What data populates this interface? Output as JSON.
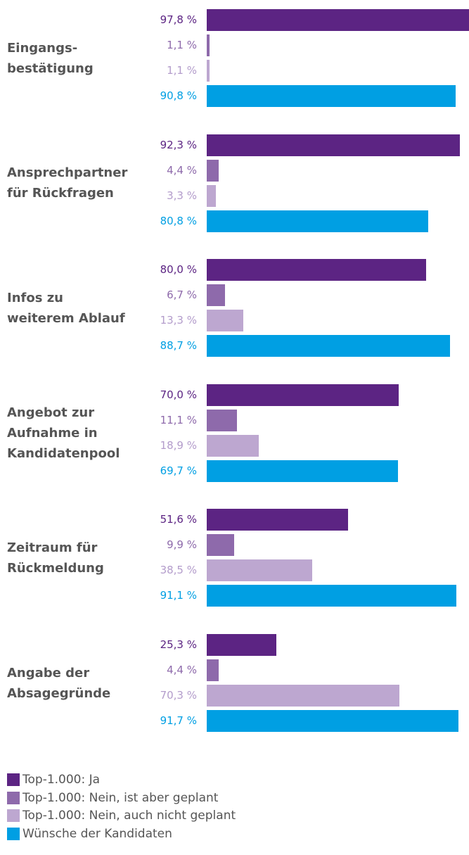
{
  "chart_data": {
    "type": "hbar",
    "categories": [
      "Eingangs-\nbestätigung",
      "Ansprechpartner\nfür Rückfragen",
      "Infos zu\nweiterem Ablauf",
      "Angebot zur\nAufnahme in\nKandidatenpool",
      "Zeitraum für\nRückmeldung",
      "Angabe der\nAbsagegründe"
    ],
    "xlim": [
      0,
      100
    ],
    "series": [
      {
        "name": "Top-1.000: Ja",
        "color": "#5c2483",
        "values": [
          97.8,
          92.3,
          80.0,
          70.0,
          51.6,
          25.3
        ],
        "value_labels": [
          "97,8 %",
          "92,3 %",
          "80,0 %",
          "70,0 %",
          "51,6 %",
          "25,3 %"
        ]
      },
      {
        "name": "Top-1.000: Nein, ist aber geplant",
        "color": "#8e6aab",
        "values": [
          1.1,
          4.4,
          6.7,
          11.1,
          9.9,
          4.4
        ],
        "value_labels": [
          "1,1 %",
          "4,4 %",
          "6,7 %",
          "11,1 %",
          "9,9 %",
          "4,4 %"
        ]
      },
      {
        "name": "Top-1.000: Nein, auch nicht geplant",
        "color": "#bda7d0",
        "values": [
          1.1,
          3.3,
          13.3,
          18.9,
          38.5,
          70.3
        ],
        "value_labels": [
          "1,1 %",
          "3,3 %",
          "13,3 %",
          "18,9 %",
          "38,5 %",
          "70,3 %"
        ]
      },
      {
        "name": "Wünsche der Kandidaten",
        "color": "#009fe3",
        "values": [
          90.8,
          80.8,
          88.7,
          69.7,
          91.1,
          91.7
        ],
        "value_labels": [
          "90,8 %",
          "80,8 %",
          "88,7 %",
          "69,7 %",
          "91,1 %",
          "91,7 %"
        ]
      }
    ]
  }
}
